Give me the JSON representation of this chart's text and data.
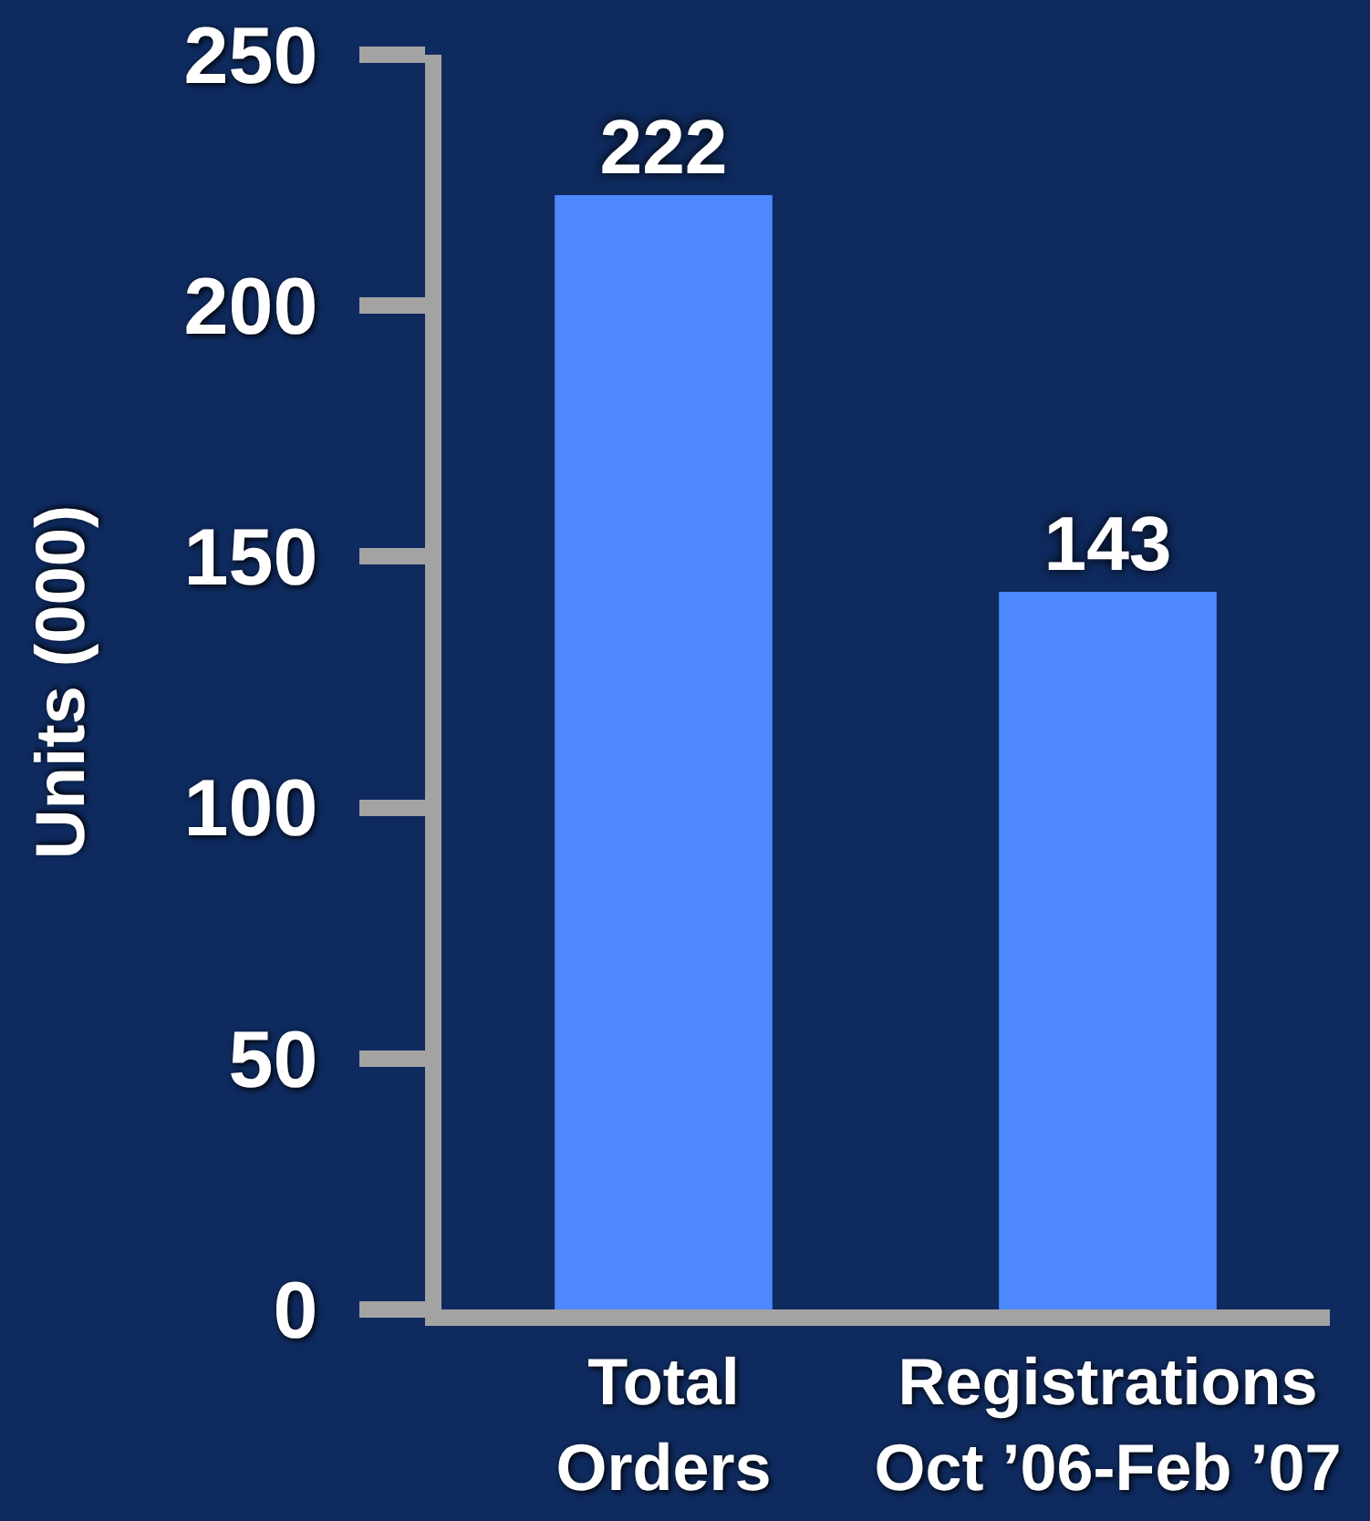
{
  "chart_data": {
    "type": "bar",
    "ylabel": "Units (000)",
    "categories": [
      "Total Orders",
      "Registrations Oct ’06-Feb ’07"
    ],
    "values": [
      222,
      143
    ],
    "color": "#4d88ff",
    "data_labels": true,
    "ylim": [
      0,
      250
    ],
    "yticks": [
      0,
      50,
      100,
      150,
      200,
      250
    ]
  }
}
